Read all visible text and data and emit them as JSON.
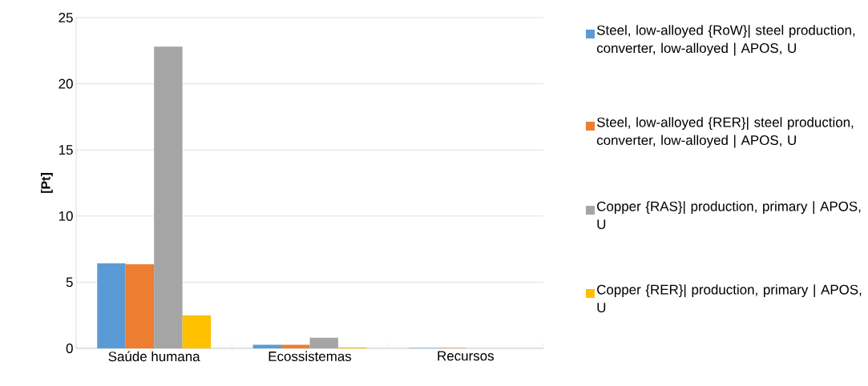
{
  "chart_data": {
    "type": "bar",
    "ylabel": "[Pt]",
    "categories": [
      "Saúde humana",
      "Ecossistemas",
      "Recursos"
    ],
    "series": [
      {
        "name": "Steel, low-alloyed {RoW}| steel production, converter, low-alloyed | APOS, U",
        "color": "#5b9bd5",
        "values": [
          6.43,
          0.27,
          0.03
        ]
      },
      {
        "name": "Steel, low-alloyed {RER}| steel production, converter, low-alloyed | APOS, U",
        "color": "#ed7d31",
        "values": [
          6.35,
          0.27,
          0.03
        ]
      },
      {
        "name": "Copper {RAS}| production, primary | APOS, U",
        "color": "#a5a5a5",
        "values": [
          22.8,
          0.8,
          null
        ]
      },
      {
        "name": "Copper {RER}| production, primary | APOS, U",
        "color": "#ffc000",
        "values": [
          2.5,
          0.08,
          null
        ]
      }
    ],
    "ylim": [
      0,
      25
    ],
    "yticks": [
      0,
      5,
      10,
      15,
      20,
      25
    ],
    "grid": "y",
    "legend": "right"
  }
}
